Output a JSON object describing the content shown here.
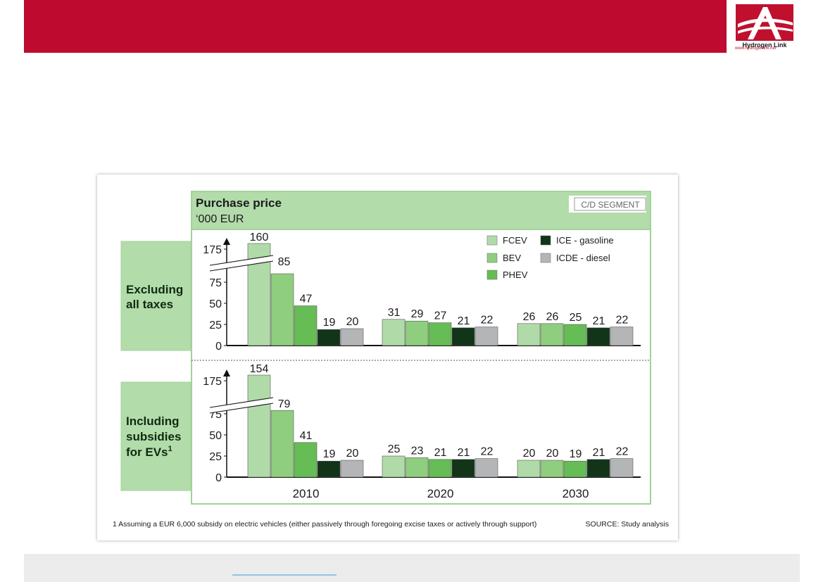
{
  "logo": {
    "name": "Hydrogen Link",
    "url": "www.hydrogenlink.net"
  },
  "chart_data": {
    "type": "bar",
    "title": "Purchase price",
    "subtitle": "‘000 EUR",
    "segment_label": "C/D SEGMENT",
    "categories": [
      "2010",
      "2020",
      "2030"
    ],
    "legend": [
      "FCEV",
      "BEV",
      "PHEV",
      "ICE - gasoline",
      "ICDE - diesel"
    ],
    "colors": {
      "FCEV": "#b0dba8",
      "BEV": "#8fce7e",
      "PHEV": "#66bd55",
      "ICE - gasoline": "#123418",
      "ICDE - diesel": "#b4b5b7"
    },
    "yticks": [
      "0",
      "25",
      "50",
      "75",
      "175"
    ],
    "ylim": [
      0,
      175
    ],
    "axis_break": true,
    "panels": [
      {
        "label": "Excluding all taxes",
        "label_lines": [
          "Excluding",
          "all taxes"
        ],
        "series": [
          {
            "name": "FCEV",
            "values": [
              160,
              31,
              26
            ]
          },
          {
            "name": "BEV",
            "values": [
              85,
              29,
              26
            ]
          },
          {
            "name": "PHEV",
            "values": [
              47,
              27,
              25
            ]
          },
          {
            "name": "ICE - gasoline",
            "values": [
              19,
              21,
              21
            ]
          },
          {
            "name": "ICDE - diesel",
            "values": [
              20,
              22,
              22
            ]
          }
        ]
      },
      {
        "label": "Including subsidies for EVs1",
        "label_lines": [
          "Including",
          "subsidies",
          "for EVs"
        ],
        "label_sup": "1",
        "series": [
          {
            "name": "FCEV",
            "values": [
              154,
              25,
              20
            ]
          },
          {
            "name": "BEV",
            "values": [
              79,
              23,
              20
            ]
          },
          {
            "name": "PHEV",
            "values": [
              41,
              21,
              19
            ]
          },
          {
            "name": "ICE - gasoline",
            "values": [
              19,
              21,
              21
            ]
          },
          {
            "name": "ICDE - diesel",
            "values": [
              20,
              22,
              22
            ]
          }
        ]
      }
    ],
    "footnote": "1 Assuming a EUR 6,000 subsidy on electric vehicles (either passively through foregoing excise taxes or actively through support)",
    "source": "SOURCE: Study analysis"
  }
}
